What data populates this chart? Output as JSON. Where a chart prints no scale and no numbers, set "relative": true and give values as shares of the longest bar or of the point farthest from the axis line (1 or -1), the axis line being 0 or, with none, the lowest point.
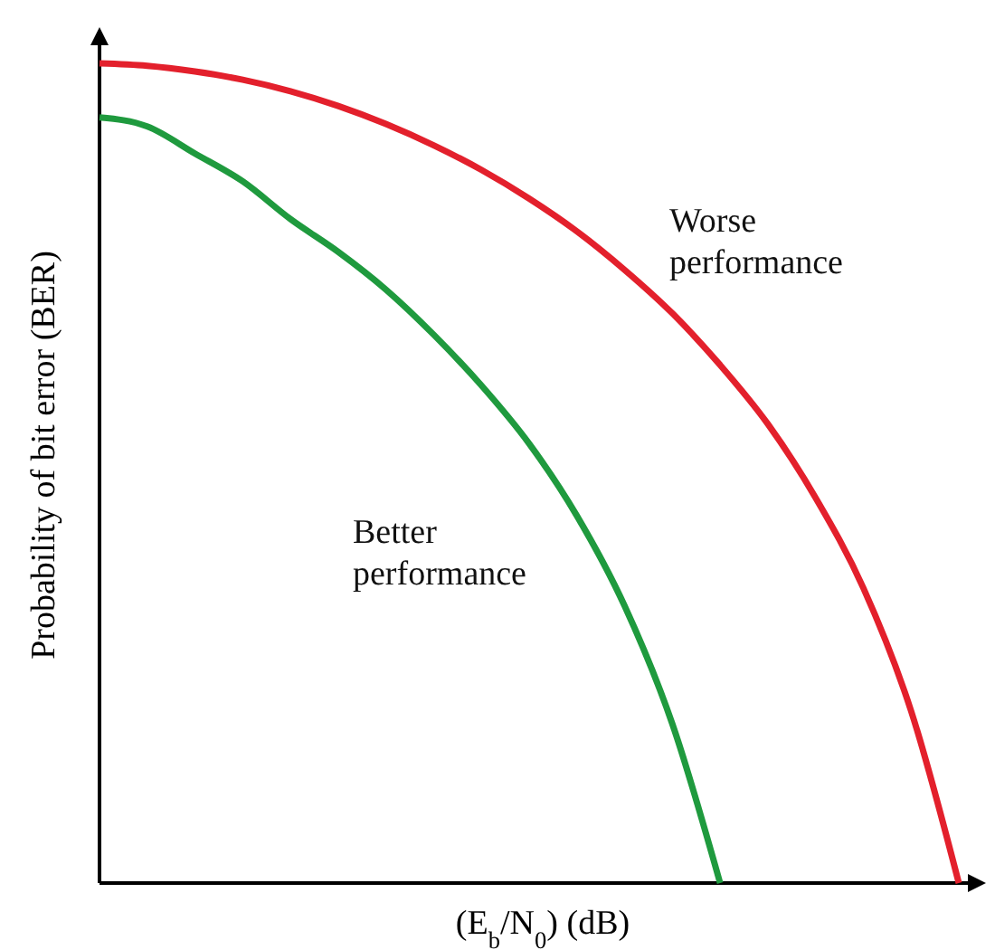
{
  "chart_data": {
    "type": "line",
    "relative": true,
    "xlabel": "(E$_{b}$/N$_{0}$) (dB)",
    "ylabel": "Probability of bit error (BER)",
    "categories": [
      null,
      null,
      null,
      null,
      null,
      null,
      null,
      null,
      null,
      null,
      null,
      null,
      null,
      null,
      null,
      null,
      null,
      null,
      null
    ],
    "series": [
      {
        "color": "#e3202c",
        "values": [
          1,
          0.997,
          0.99,
          0.98,
          0.966,
          0.948,
          0.926,
          0.9,
          0.87,
          0.835,
          0.795,
          0.748,
          0.695,
          0.632,
          0.56,
          0.47,
          0.36,
          0.21,
          0
        ]
      },
      {
        "color": "#1f9a3e",
        "values": [
          0.934,
          0.923,
          0.89,
          0.856,
          0.81,
          0.77,
          0.724,
          0.669,
          0.607,
          0.536,
          0.448,
          0.338,
          0.194,
          0,
          null,
          null,
          null,
          null,
          null
        ]
      }
    ],
    "annotations": [
      "Worse\nperformance",
      "Better\nperformance"
    ],
    "marker": "none",
    "line_style": "solid"
  }
}
